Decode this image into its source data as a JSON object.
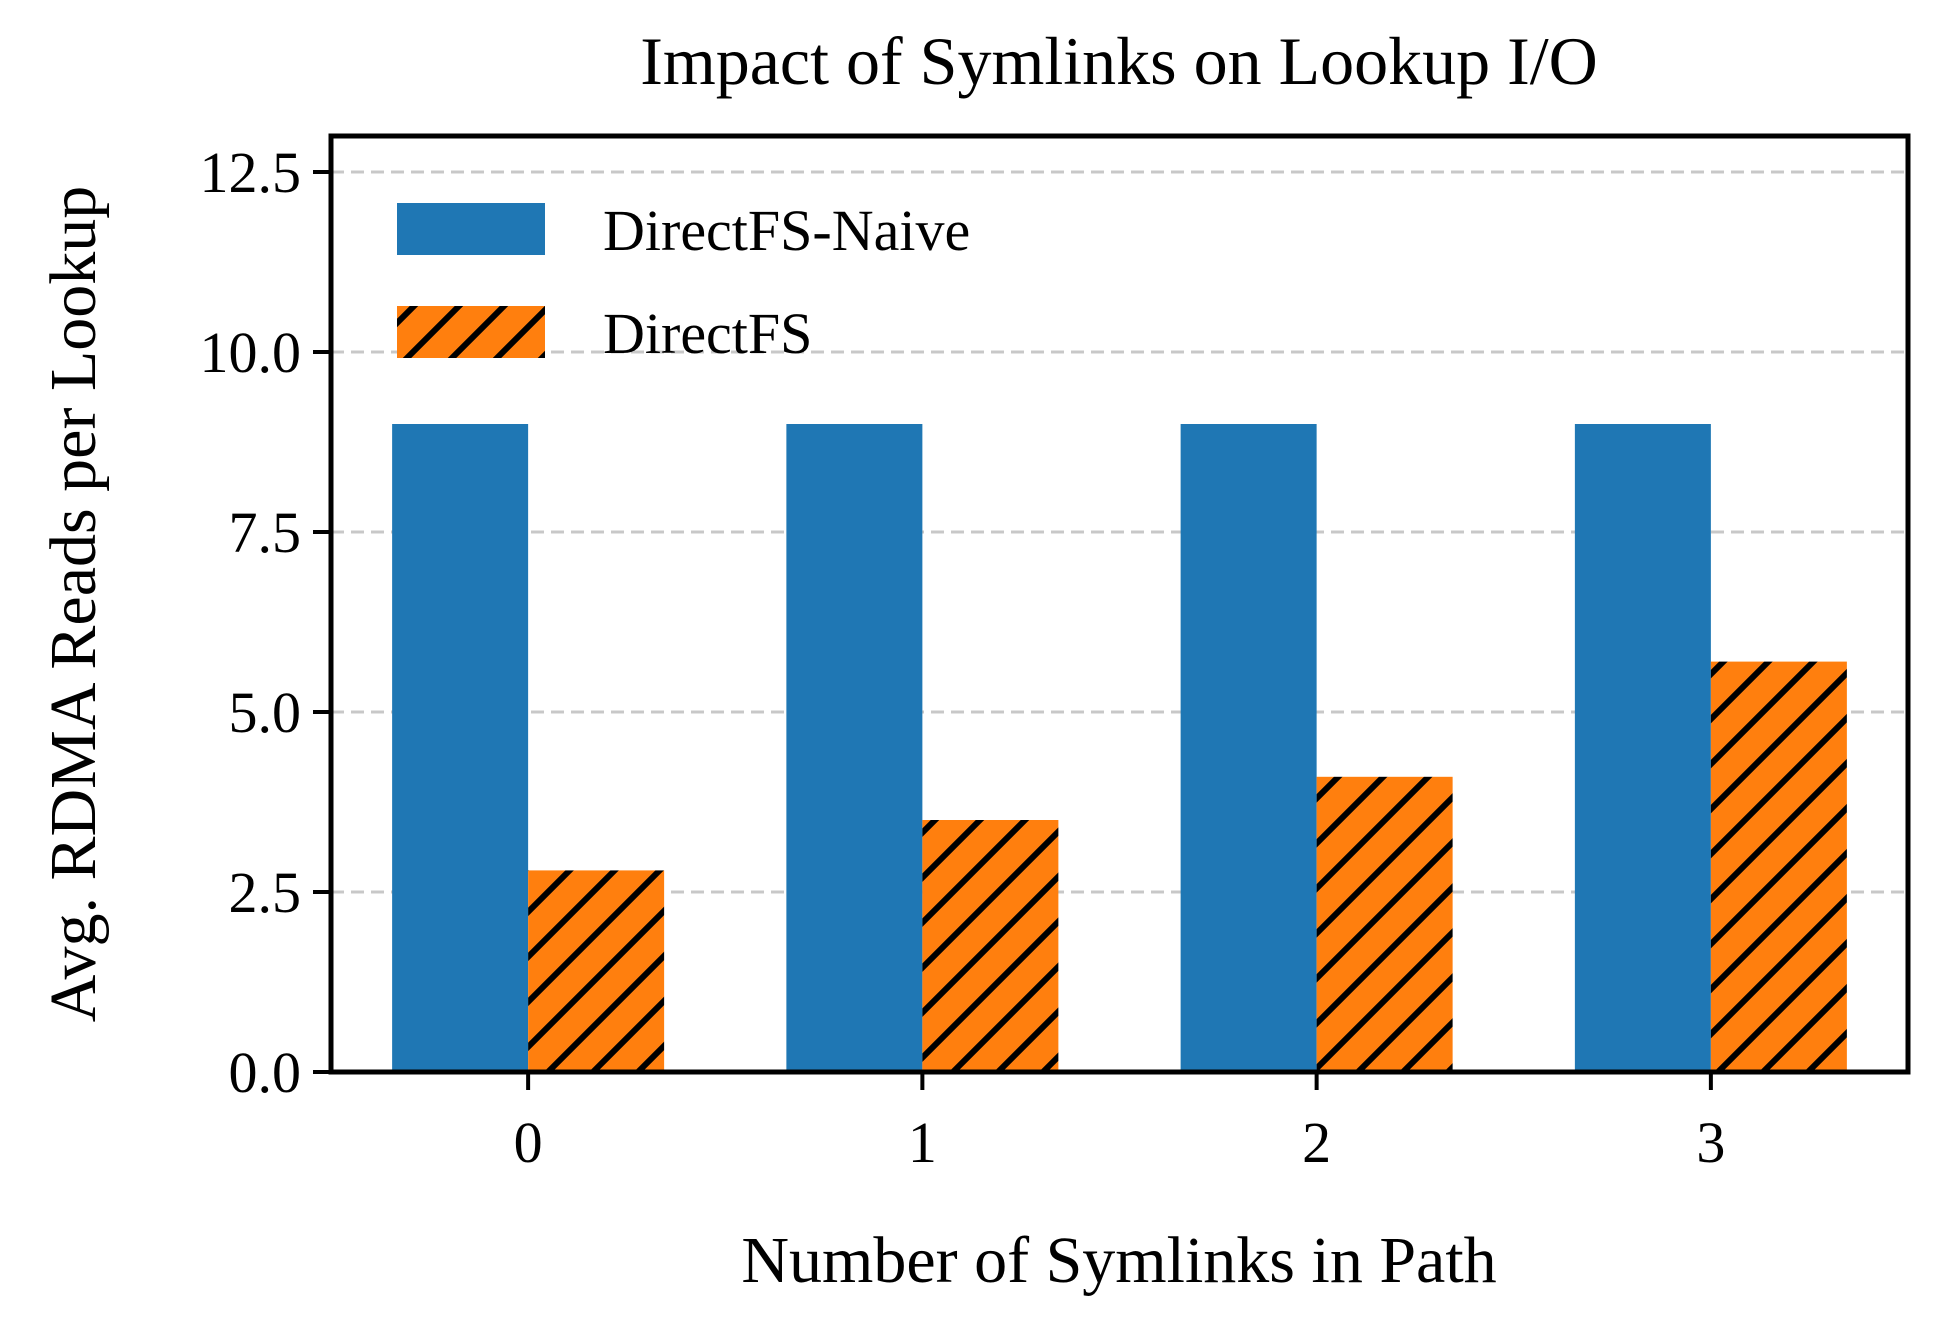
{
  "chart_data": {
    "type": "bar",
    "title": "Impact of Symlinks on Lookup I/O",
    "xlabel": "Number of Symlinks in Path",
    "ylabel": "Avg. RDMA Reads per Lookup",
    "categories": [
      "0",
      "1",
      "2",
      "3"
    ],
    "series": [
      {
        "name": "DirectFS-Naive",
        "values": [
          9.0,
          9.0,
          9.0,
          9.0
        ],
        "color": "#1f77b4",
        "hatch": "none"
      },
      {
        "name": "DirectFS",
        "values": [
          2.8,
          3.5,
          4.1,
          5.7
        ],
        "color": "#ff7f0e",
        "hatch": "diagonal"
      }
    ],
    "ylim": [
      0,
      13
    ],
    "yticks": [
      "0.0",
      "2.5",
      "5.0",
      "7.5",
      "10.0",
      "12.5"
    ],
    "grid": "y-dashed",
    "legend_position": "top-left"
  }
}
